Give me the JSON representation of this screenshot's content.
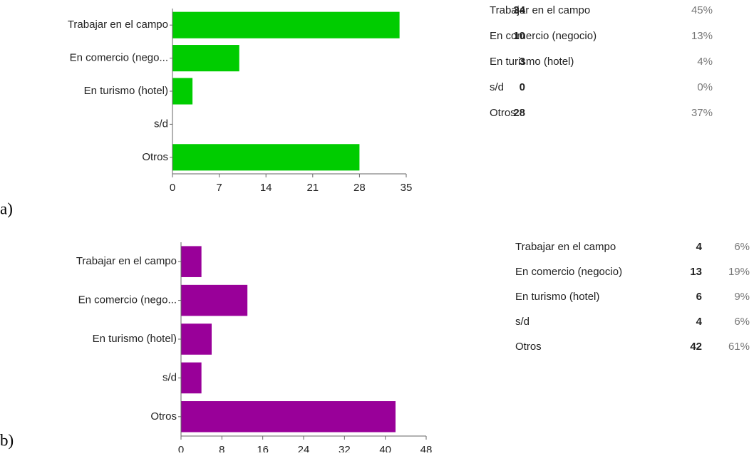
{
  "chart_data": [
    {
      "type": "bar",
      "orientation": "horizontal",
      "label": "a)",
      "categories": [
        "Trabajar en el campo",
        "En comercio (nego...",
        "En turismo (hotel)",
        "s/d",
        "Otros"
      ],
      "values": [
        34,
        10,
        3,
        0,
        28
      ],
      "color": "#00cc00",
      "xlim": [
        0,
        35
      ],
      "xticks": [
        0,
        7,
        14,
        21,
        28,
        35
      ],
      "table": [
        [
          "Trabajar en el campo",
          "34",
          "45%"
        ],
        [
          "En comercio (negocio)",
          "10",
          "13%"
        ],
        [
          "En turismo (hotel)",
          "3",
          "4%"
        ],
        [
          "s/d",
          "0",
          "0%"
        ],
        [
          "Otros",
          "28",
          "37%"
        ]
      ]
    },
    {
      "type": "bar",
      "orientation": "horizontal",
      "label": "b)",
      "categories": [
        "Trabajar en el campo",
        "En comercio (nego...",
        "En turismo (hotel)",
        "s/d",
        "Otros"
      ],
      "values": [
        4,
        13,
        6,
        4,
        42
      ],
      "color": "#990099",
      "xlim": [
        0,
        48
      ],
      "xticks": [
        0,
        8,
        16,
        24,
        32,
        40,
        48
      ],
      "table": [
        [
          "Trabajar en el campo",
          "4",
          "6%"
        ],
        [
          "En comercio (negocio)",
          "13",
          "19%"
        ],
        [
          "En turismo (hotel)",
          "6",
          "9%"
        ],
        [
          "s/d",
          "4",
          "6%"
        ],
        [
          "Otros",
          "42",
          "61%"
        ]
      ]
    }
  ]
}
